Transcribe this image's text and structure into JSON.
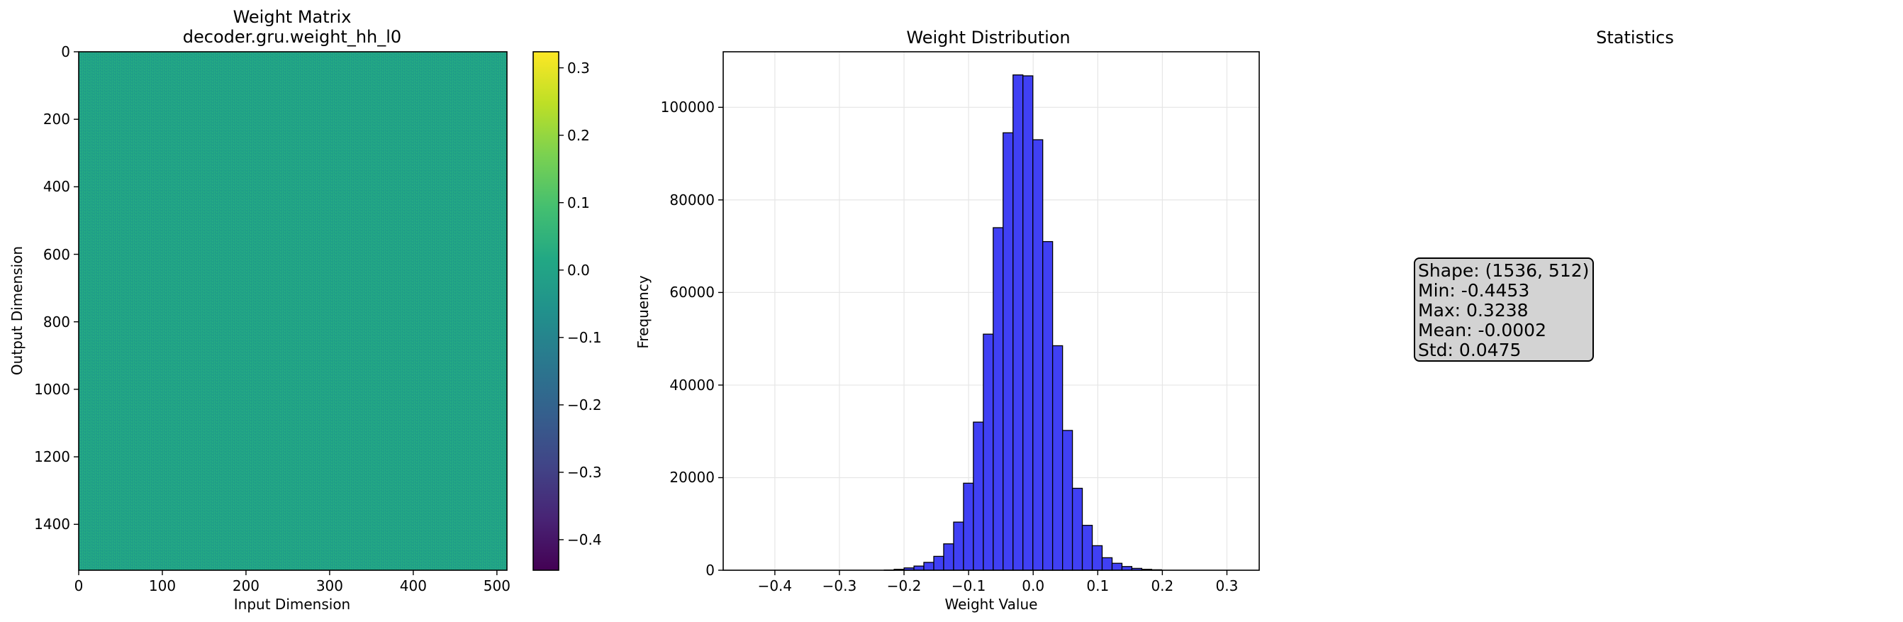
{
  "chart_data": [
    {
      "type": "heatmap",
      "title": "Weight Matrix",
      "subtitle": "decoder.gru.weight_hh_l0",
      "xlabel": "Input Dimension",
      "ylabel": "Output Dimension",
      "xlim": [
        0,
        512
      ],
      "ylim": [
        1536,
        0
      ],
      "x_ticks": [
        "0",
        "100",
        "200",
        "300",
        "400",
        "500"
      ],
      "y_ticks": [
        "0",
        "200",
        "400",
        "600",
        "800",
        "1000",
        "1200",
        "1400"
      ],
      "colormap": "viridis",
      "colorbar_range": [
        -0.4453,
        0.3238
      ],
      "colorbar_ticks": [
        "0.3",
        "0.2",
        "0.1",
        "0.0",
        "−0.1",
        "−0.2",
        "−0.3",
        "−0.4"
      ],
      "colorbar_tick_values": [
        0.3,
        0.2,
        0.1,
        0.0,
        -0.1,
        -0.2,
        -0.3,
        -0.4
      ],
      "fill_color": "#20a386"
    },
    {
      "type": "bar",
      "title": "Weight Distribution",
      "xlabel": "Weight Value",
      "ylabel": "Frequency",
      "xlim": [
        -0.48,
        0.35
      ],
      "ylim": [
        0,
        112000
      ],
      "grid": true,
      "bar_color": "#4040f4",
      "x_ticks": [
        "−0.4",
        "−0.3",
        "−0.2",
        "−0.1",
        "0.0",
        "0.1",
        "0.2",
        "0.3"
      ],
      "x_tick_values": [
        -0.4,
        -0.3,
        -0.2,
        -0.1,
        0.0,
        0.1,
        0.2,
        0.3
      ],
      "y_ticks": [
        "0",
        "20000",
        "40000",
        "60000",
        "80000",
        "100000"
      ],
      "y_tick_values": [
        0,
        20000,
        40000,
        60000,
        80000,
        100000
      ],
      "bin_edges": [
        -0.4453,
        -0.43,
        -0.4147,
        -0.3993,
        -0.384,
        -0.3686,
        -0.3533,
        -0.338,
        -0.3226,
        -0.3073,
        -0.292,
        -0.2766,
        -0.2613,
        -0.2459,
        -0.2306,
        -0.2153,
        -0.1999,
        -0.1846,
        -0.1693,
        -0.1539,
        -0.1386,
        -0.1232,
        -0.1079,
        -0.0926,
        -0.0772,
        -0.0619,
        -0.0466,
        -0.0312,
        -0.0159,
        -0.0005,
        0.0148,
        0.0301,
        0.0455,
        0.0608,
        0.0761,
        0.0915,
        0.1068,
        0.1222,
        0.1375,
        0.1528,
        0.1682,
        0.1835,
        0.1988,
        0.2142,
        0.2295,
        0.2449,
        0.2602,
        0.2755,
        0.2909,
        0.3062,
        0.3238
      ],
      "values": [
        0,
        0,
        0,
        0,
        0,
        0,
        0,
        0,
        0,
        0,
        0,
        0,
        0,
        0,
        50,
        200,
        500,
        900,
        1700,
        3000,
        5700,
        10400,
        18800,
        32000,
        51000,
        74000,
        94500,
        107000,
        106800,
        93000,
        71000,
        48500,
        30200,
        17700,
        9700,
        5300,
        2700,
        1500,
        800,
        400,
        200,
        100,
        0,
        0,
        0,
        0,
        0,
        0,
        0,
        0
      ]
    },
    {
      "type": "table",
      "title": "Statistics",
      "lines": [
        "Shape: (1536, 512)",
        "Min: -0.4453",
        "Max: 0.3238",
        "Mean: -0.0002",
        "Std: 0.0475"
      ]
    }
  ]
}
